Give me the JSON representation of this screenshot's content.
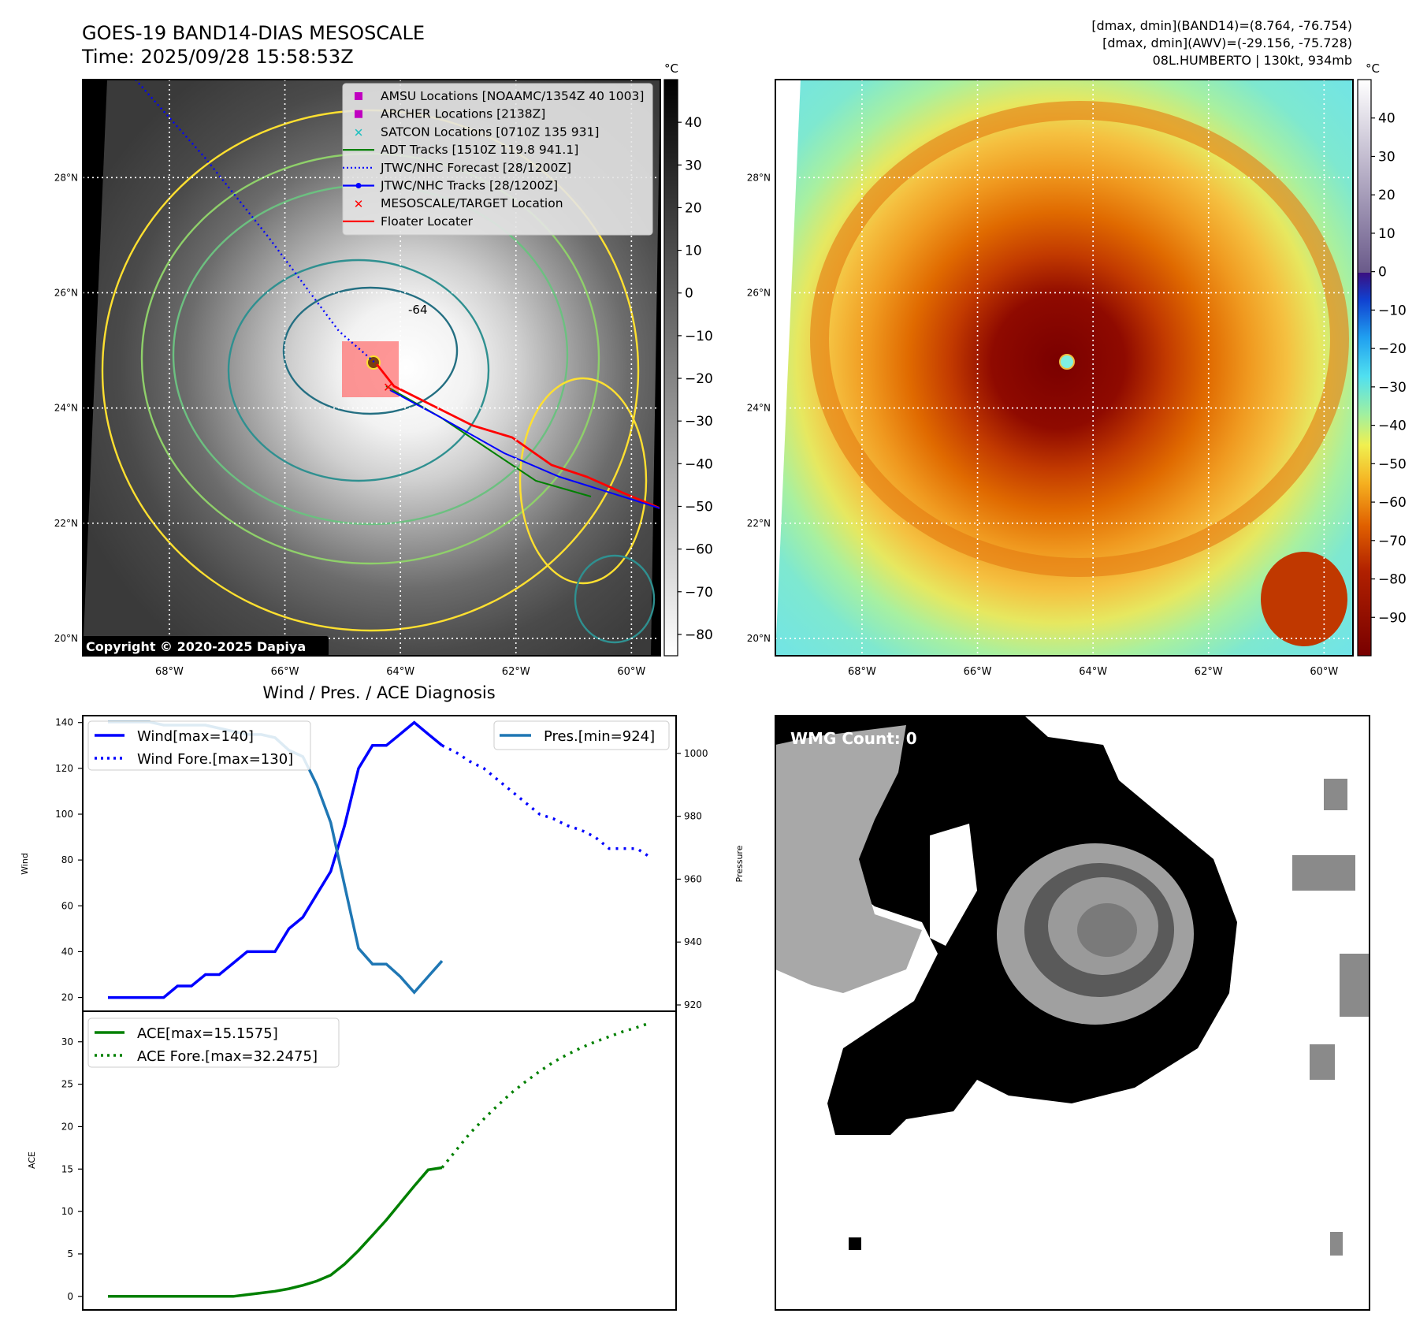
{
  "header": {
    "title_line1": "GOES-19 BAND14-DIAS MESOSCALE",
    "title_line2": "Time: 2025/09/28 15:58:53Z",
    "info_line1": "[dmax, dmin](BAND14)=(8.764, -76.754)",
    "info_line2": "[dmax, dmin](AWV)=(-29.156, -75.728)",
    "info_line3": "08L.HUMBERTO | 130kt, 934mb"
  },
  "map": {
    "lat_labels": [
      "28°N",
      "26°N",
      "24°N",
      "22°N",
      "20°N"
    ],
    "lat_values": [
      28,
      26,
      24,
      22,
      20
    ],
    "lon_labels": [
      "68°W",
      "66°W",
      "64°W",
      "62°W",
      "60°W"
    ],
    "lon_values": [
      -68,
      -66,
      -64,
      -62,
      -60
    ],
    "lon_range": [
      -69.5,
      -59.5
    ],
    "lat_range": [
      19.7,
      29.7
    ],
    "copyright": "Copyright © 2020-2025 Dapiya",
    "contour_label": "-64",
    "legend": [
      {
        "label": "AMSU Locations [NOAAMC/1354Z 40 1003]",
        "symbol": "square",
        "color": "#c000c0"
      },
      {
        "label": "ARCHER Locations [2138Z]",
        "symbol": "square",
        "color": "#c000c0"
      },
      {
        "label": "SATCON Locations [0710Z 135 931]",
        "symbol": "x",
        "color": "#20c0c0"
      },
      {
        "label": "ADT Tracks [1510Z 119.8 941.1]",
        "symbol": "line",
        "color": "#008000"
      },
      {
        "label": "JTWC/NHC Forecast [28/1200Z]",
        "symbol": "dotted",
        "color": "#0000ff"
      },
      {
        "label": "JTWC/NHC Tracks [28/1200Z]",
        "symbol": "line-dot",
        "color": "#0000ff"
      },
      {
        "label": "MESOSCALE/TARGET Location",
        "symbol": "x",
        "color": "#ff0000"
      },
      {
        "label": "Floater Locater",
        "symbol": "line",
        "color": "#ff0000"
      }
    ]
  },
  "colorbar_left": {
    "unit": "°C",
    "ticks": [
      "40",
      "30",
      "20",
      "10",
      "0",
      "−10",
      "−20",
      "−30",
      "−40",
      "−50",
      "−60",
      "−70",
      "−80"
    ],
    "tick_values": [
      40,
      30,
      20,
      10,
      0,
      -10,
      -20,
      -30,
      -40,
      -50,
      -60,
      -70,
      -80
    ],
    "range": [
      -85,
      50
    ]
  },
  "colorbar_right": {
    "unit": "°C",
    "ticks": [
      "40",
      "30",
      "20",
      "10",
      "0",
      "−10",
      "−20",
      "−30",
      "−40",
      "−50",
      "−60",
      "−70",
      "−80",
      "−90"
    ],
    "tick_values": [
      40,
      30,
      20,
      10,
      0,
      -10,
      -20,
      -30,
      -40,
      -50,
      -60,
      -70,
      -80,
      -90
    ],
    "range": [
      -100,
      50
    ]
  },
  "wmg": {
    "label": "WMG Count: 0"
  },
  "chart_data": [
    {
      "type": "line",
      "title": "Wind / Pres. / ACE Diagnosis",
      "ylabel": "Wind",
      "y2label": "Pressure",
      "ylim": [
        14,
        143
      ],
      "y2lim": [
        918,
        1012
      ],
      "yticks": [
        20,
        40,
        60,
        80,
        100,
        120,
        140
      ],
      "y2ticks": [
        920,
        940,
        960,
        980,
        1000
      ],
      "series": [
        {
          "name": "Wind[max=140]",
          "color": "#0000ff",
          "style": "solid",
          "values": [
            20,
            20,
            20,
            20,
            20,
            25,
            25,
            30,
            30,
            35,
            40,
            40,
            40,
            50,
            55,
            65,
            75,
            95,
            120,
            130,
            130,
            135,
            140,
            135,
            130
          ]
        },
        {
          "name": "Wind Fore.[max=130]",
          "color": "#0000ff",
          "style": "dotted",
          "values": [
            null,
            null,
            null,
            null,
            null,
            null,
            null,
            null,
            null,
            null,
            null,
            null,
            null,
            null,
            null,
            null,
            null,
            null,
            null,
            null,
            null,
            null,
            null,
            null,
            130,
            127,
            123,
            120,
            115,
            110,
            105,
            100,
            98,
            95,
            93,
            90,
            85,
            85,
            85,
            81
          ]
        },
        {
          "name": "Pres.[min=924]",
          "color": "#1f77b4",
          "style": "solid",
          "axis": "right",
          "values": [
            1010,
            1010,
            1010,
            1010,
            1009,
            1009,
            1009,
            1009,
            1008,
            1007,
            1006,
            1006,
            1005,
            1001,
            999,
            990,
            978,
            958,
            938,
            933,
            933,
            929,
            924,
            929,
            934
          ]
        }
      ]
    },
    {
      "type": "line",
      "ylabel": "ACE",
      "ylim": [
        -1.6,
        33.6
      ],
      "yticks": [
        0,
        5,
        10,
        15,
        20,
        25,
        30
      ],
      "series": [
        {
          "name": "ACE[max=15.1575]",
          "color": "#008000",
          "style": "solid",
          "values": [
            0,
            0,
            0,
            0,
            0,
            0,
            0,
            0,
            0,
            0,
            0.2,
            0.4,
            0.6,
            0.9,
            1.3,
            1.8,
            2.5,
            3.8,
            5.4,
            7.2,
            9.0,
            11.0,
            13.0,
            14.9,
            15.16
          ]
        },
        {
          "name": "ACE Fore.[max=32.2475]",
          "color": "#008000",
          "style": "dotted",
          "values": [
            null,
            null,
            null,
            null,
            null,
            null,
            null,
            null,
            null,
            null,
            null,
            null,
            null,
            null,
            null,
            null,
            null,
            null,
            null,
            null,
            null,
            null,
            null,
            null,
            15.16,
            17.2,
            19.2,
            20.9,
            22.5,
            24.0,
            25.3,
            26.5,
            27.6,
            28.5,
            29.3,
            30.0,
            30.6,
            31.2,
            31.7,
            32.25
          ]
        }
      ]
    }
  ]
}
